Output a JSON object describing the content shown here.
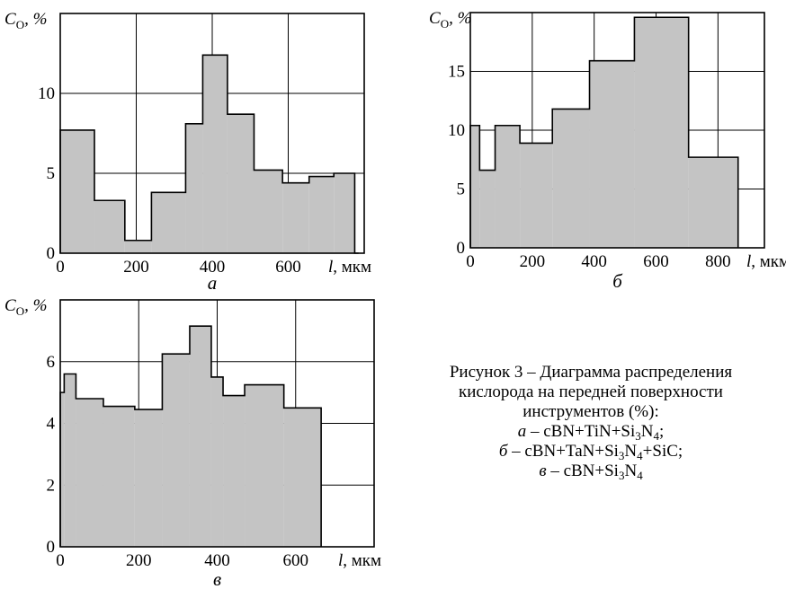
{
  "chart_data": [
    {
      "type": "area",
      "panel_label": "а",
      "ylabel_main": "C",
      "ylabel_sub": "O",
      "ylabel_unit": ", %",
      "xlabel_var": "l",
      "xlabel_unit": ", мкм",
      "xlim": [
        0,
        800
      ],
      "ylim": [
        0,
        15
      ],
      "x_ticks": [
        0,
        200,
        400,
        600
      ],
      "y_ticks": [
        0,
        5,
        10
      ],
      "grid": true,
      "steps": [
        {
          "x0": 0,
          "x1": 90,
          "y": 7.7
        },
        {
          "x0": 90,
          "x1": 170,
          "y": 3.3
        },
        {
          "x0": 170,
          "x1": 240,
          "y": 0.8
        },
        {
          "x0": 240,
          "x1": 330,
          "y": 3.8
        },
        {
          "x0": 330,
          "x1": 375,
          "y": 8.1
        },
        {
          "x0": 375,
          "x1": 440,
          "y": 12.4
        },
        {
          "x0": 440,
          "x1": 510,
          "y": 8.7
        },
        {
          "x0": 510,
          "x1": 585,
          "y": 5.2
        },
        {
          "x0": 585,
          "x1": 655,
          "y": 4.4
        },
        {
          "x0": 655,
          "x1": 720,
          "y": 4.8
        },
        {
          "x0": 720,
          "x1": 775,
          "y": 5.0
        },
        {
          "x0": 775,
          "x1": 785,
          "y": 0
        }
      ]
    },
    {
      "type": "area",
      "panel_label": "б",
      "ylabel_main": "C",
      "ylabel_sub": "O",
      "ylabel_unit": ", %",
      "xlabel_var": "l",
      "xlabel_unit": ", мкм",
      "xlim": [
        0,
        950
      ],
      "ylim": [
        0,
        20
      ],
      "x_ticks": [
        0,
        200,
        400,
        600,
        800
      ],
      "y_ticks": [
        0,
        5,
        10,
        15
      ],
      "grid": true,
      "steps": [
        {
          "x0": 0,
          "x1": 30,
          "y": 10.4
        },
        {
          "x0": 30,
          "x1": 80,
          "y": 6.6
        },
        {
          "x0": 80,
          "x1": 160,
          "y": 10.4
        },
        {
          "x0": 160,
          "x1": 265,
          "y": 8.9
        },
        {
          "x0": 265,
          "x1": 385,
          "y": 11.8
        },
        {
          "x0": 385,
          "x1": 530,
          "y": 15.9
        },
        {
          "x0": 530,
          "x1": 705,
          "y": 19.6
        },
        {
          "x0": 705,
          "x1": 865,
          "y": 7.7
        }
      ]
    },
    {
      "type": "area",
      "panel_label": "в",
      "ylabel_main": "C",
      "ylabel_sub": "O",
      "ylabel_unit": ", %",
      "xlabel_var": "l",
      "xlabel_unit": ", мкм",
      "xlim": [
        0,
        800
      ],
      "ylim": [
        0,
        8
      ],
      "x_ticks": [
        0,
        200,
        400,
        600
      ],
      "y_ticks": [
        0,
        2,
        4,
        6
      ],
      "grid": true,
      "steps": [
        {
          "x0": 0,
          "x1": 10,
          "y": 5.0
        },
        {
          "x0": 10,
          "x1": 40,
          "y": 5.6
        },
        {
          "x0": 40,
          "x1": 110,
          "y": 4.8
        },
        {
          "x0": 110,
          "x1": 190,
          "y": 4.55
        },
        {
          "x0": 190,
          "x1": 260,
          "y": 4.45
        },
        {
          "x0": 260,
          "x1": 330,
          "y": 6.25
        },
        {
          "x0": 330,
          "x1": 385,
          "y": 7.15
        },
        {
          "x0": 385,
          "x1": 415,
          "y": 5.5
        },
        {
          "x0": 415,
          "x1": 470,
          "y": 4.9
        },
        {
          "x0": 470,
          "x1": 570,
          "y": 5.25
        },
        {
          "x0": 570,
          "x1": 665,
          "y": 4.5
        }
      ]
    }
  ],
  "caption": {
    "line1": "Рисунок 3 – Диаграмма распределения",
    "line2": "кислорода на передней поверхности",
    "line3": "инструментов (%):",
    "item_a_letter": "а",
    "item_a_text": " – cBN+TiN+Si",
    "item_a_sub1": "3",
    "item_a_text2": "N",
    "item_a_sub2": "4",
    "item_a_text3": ";",
    "item_b_letter": "б",
    "item_b_text": " – cBN+TaN+Si",
    "item_b_sub1": "3",
    "item_b_text2": "N",
    "item_b_sub2": "4",
    "item_b_text3": "+SiC;",
    "item_c_letter": "в",
    "item_c_text": " – cBN+Si",
    "item_c_sub1": "3",
    "item_c_text2": "N",
    "item_c_sub2": "4"
  },
  "colors": {
    "fill": "#c4c4c4",
    "line": "#000000",
    "grid": "#000000",
    "background": "#ffffff"
  }
}
